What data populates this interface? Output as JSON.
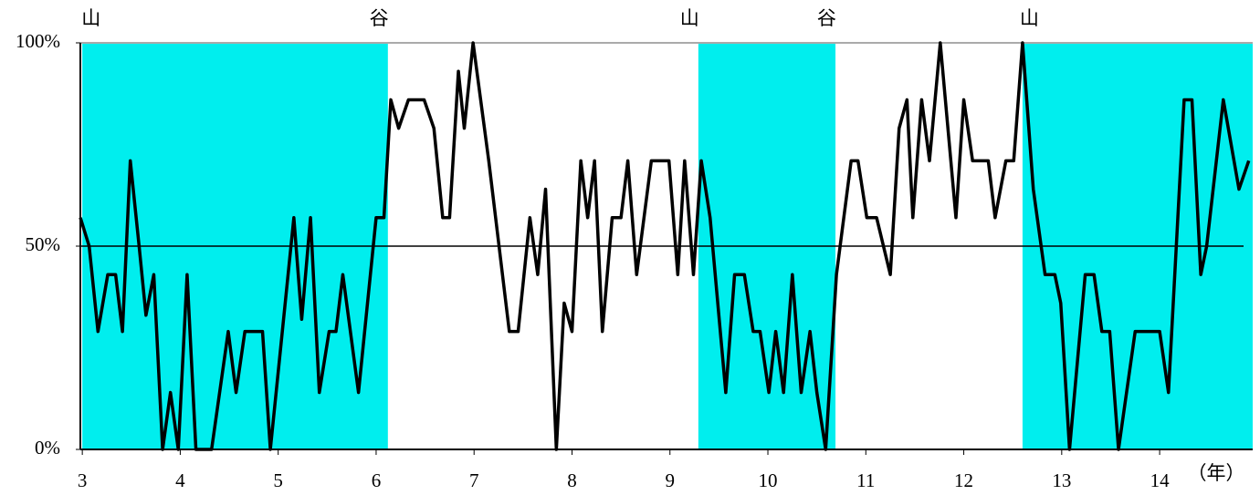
{
  "chart_data": {
    "type": "line",
    "x": [
      2.98,
      3.07,
      3.16,
      3.26,
      3.34,
      3.41,
      3.49,
      3.58,
      3.65,
      3.73,
      3.82,
      3.9,
      3.98,
      4.07,
      4.16,
      4.32,
      4.49,
      4.57,
      4.66,
      4.84,
      4.92,
      5.16,
      5.24,
      5.33,
      5.42,
      5.52,
      5.59,
      5.66,
      5.82,
      6.0,
      6.08,
      6.15,
      6.23,
      6.33,
      6.49,
      6.59,
      6.68,
      6.75,
      6.84,
      6.9,
      6.99,
      7.15,
      7.36,
      7.45,
      7.57,
      7.65,
      7.73,
      7.84,
      7.92,
      8.0,
      8.09,
      8.16,
      8.23,
      8.31,
      8.41,
      8.5,
      8.57,
      8.66,
      8.81,
      8.99,
      9.08,
      9.15,
      9.24,
      9.32,
      9.41,
      9.57,
      9.66,
      9.76,
      9.85,
      9.92,
      10.01,
      10.08,
      10.16,
      10.25,
      10.34,
      10.43,
      10.5,
      10.59,
      10.7,
      10.85,
      10.92,
      11.01,
      11.11,
      11.25,
      11.34,
      11.42,
      11.48,
      11.57,
      11.65,
      11.76,
      11.92,
      12.0,
      12.09,
      12.25,
      12.32,
      12.43,
      12.51,
      12.6,
      12.71,
      12.83,
      12.93,
      12.99,
      13.08,
      13.24,
      13.33,
      13.41,
      13.49,
      13.58,
      13.75,
      14.0,
      14.09,
      14.25,
      14.33,
      14.42,
      14.48,
      14.65,
      14.81,
      14.91
    ],
    "values": [
      57,
      50,
      29,
      43,
      43,
      29,
      71,
      50,
      33,
      43,
      0,
      14,
      0,
      43,
      0,
      0,
      29,
      14,
      29,
      29,
      0,
      57,
      32,
      57,
      14,
      29,
      29,
      43,
      14,
      57,
      57,
      86,
      79,
      86,
      86,
      79,
      57,
      57,
      93,
      79,
      100,
      71,
      29,
      29,
      57,
      43,
      64,
      0,
      36,
      29,
      71,
      57,
      71,
      29,
      57,
      57,
      71,
      43,
      71,
      71,
      43,
      71,
      43,
      71,
      57,
      14,
      43,
      43,
      29,
      29,
      14,
      29,
      14,
      43,
      14,
      29,
      14,
      0,
      43,
      71,
      71,
      57,
      57,
      43,
      79,
      86,
      57,
      86,
      71,
      100,
      57,
      86,
      71,
      71,
      57,
      71,
      71,
      100,
      64,
      43,
      43,
      36,
      0,
      43,
      43,
      29,
      29,
      0,
      29,
      29,
      14,
      86,
      86,
      43,
      50,
      86,
      64,
      71
    ],
    "color": "#000000",
    "xlim": [
      2.98,
      14.95
    ],
    "xticks": [
      3,
      4,
      5,
      6,
      7,
      8,
      9,
      10,
      11,
      12,
      13,
      14
    ],
    "x_unit_label": "（年）",
    "ylim": [
      0,
      100
    ],
    "yticks": [
      {
        "value": 0,
        "label": "0%"
      },
      {
        "value": 50,
        "label": "50%"
      },
      {
        "value": 100,
        "label": "100%"
      }
    ],
    "reference_line": 50,
    "shaded_color": "#00eeee",
    "shaded": [
      [
        3.0,
        6.12
      ],
      [
        9.29,
        10.69
      ],
      [
        12.6,
        14.95
      ]
    ],
    "phases": [
      {
        "x": 3.09,
        "label": "山"
      },
      {
        "x": 6.03,
        "label": "谷"
      },
      {
        "x": 9.2,
        "label": "山"
      },
      {
        "x": 10.6,
        "label": "谷"
      },
      {
        "x": 12.67,
        "label": "山"
      }
    ]
  }
}
